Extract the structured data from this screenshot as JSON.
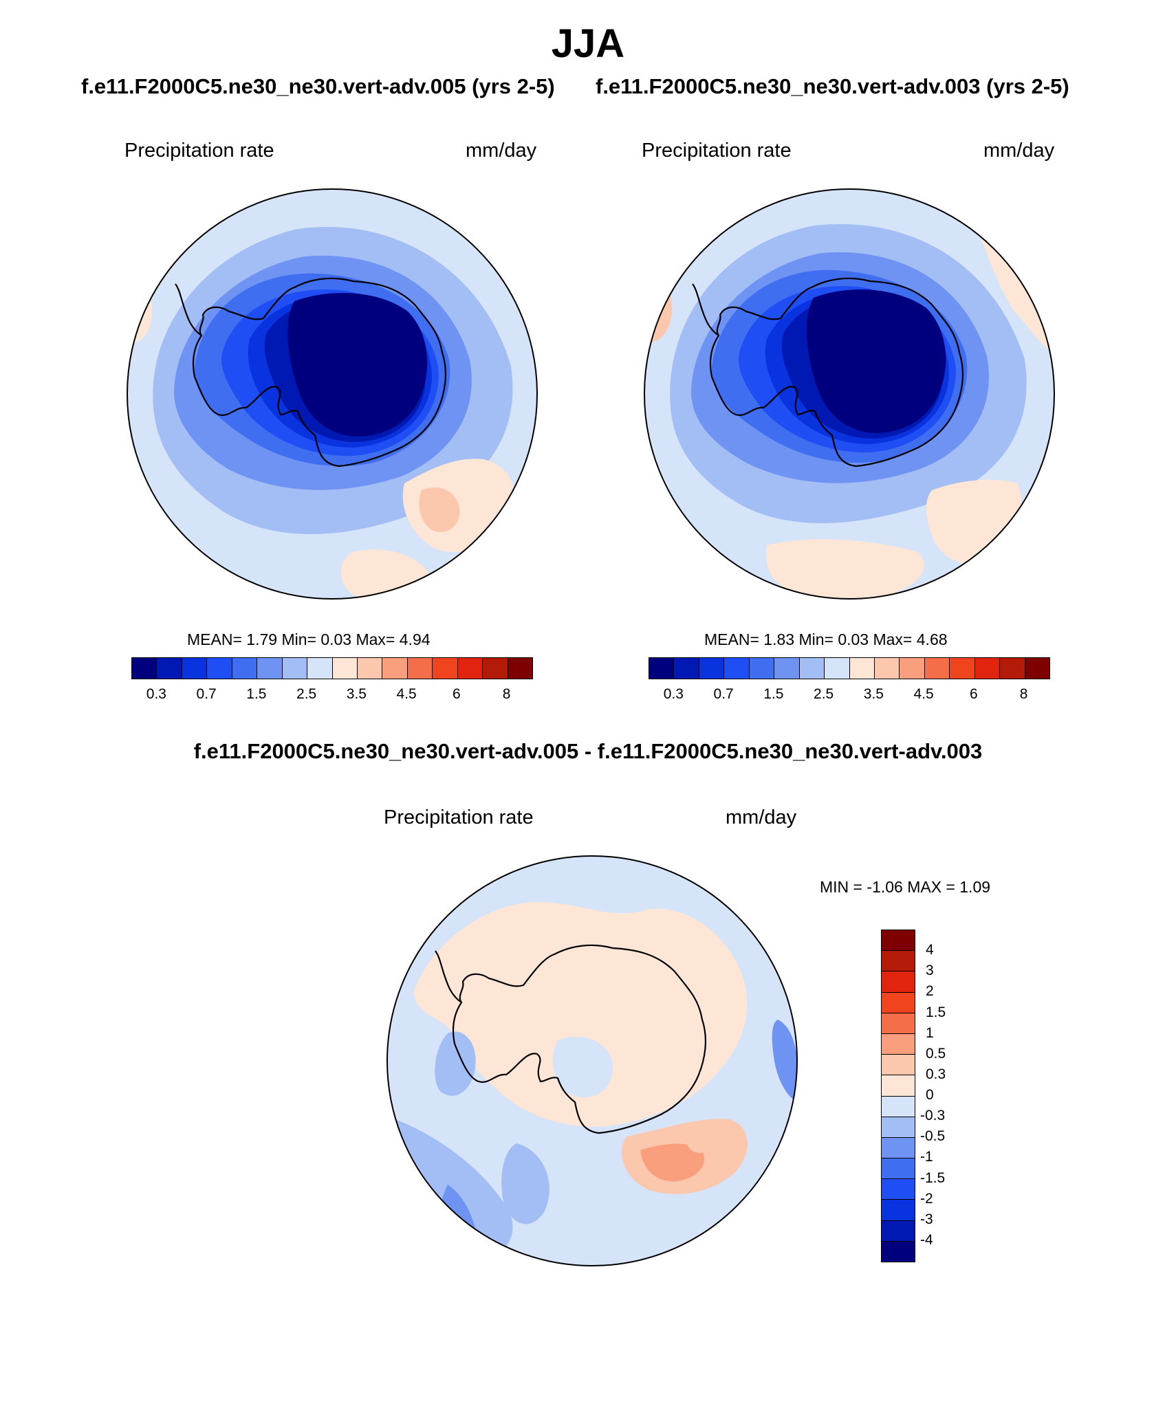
{
  "figure": {
    "season": "JJA",
    "case_left": "f.e11.F2000C5.ne30_ne30.vert-adv.005 (yrs 2-5)",
    "case_right": "f.e11.F2000C5.ne30_ne30.vert-adv.003 (yrs 2-5)",
    "diff_title": "f.e11.F2000C5.ne30_ne30.vert-adv.005 - f.e11.F2000C5.ne30_ne30.vert-adv.003"
  },
  "panels": [
    {
      "variable": "Precipitation rate",
      "units": "mm/day",
      "stats": {
        "mean_label": "MEAN=",
        "mean": "1.79",
        "min_label": "Min=",
        "min": "0.03",
        "max_label": "Max=",
        "max": "4.94"
      }
    },
    {
      "variable": "Precipitation rate",
      "units": "mm/day",
      "stats": {
        "mean_label": "MEAN=",
        "mean": "1.83",
        "min_label": "Min=",
        "min": "0.03",
        "max_label": "Max=",
        "max": "4.68"
      }
    }
  ],
  "diff_panel": {
    "variable": "Precipitation rate",
    "units": "mm/day",
    "stats": {
      "min_label": "MIN =",
      "min": "-1.06",
      "max_label": "MAX =",
      "max": "1.09"
    }
  },
  "colorbar_main": {
    "colors": [
      "#00007f",
      "#0019b3",
      "#0a33e0",
      "#1f4ef5",
      "#3f6ef0",
      "#6e93f2",
      "#a3bdf5",
      "#d6e4f9",
      "#fde6d6",
      "#fbc8ad",
      "#f99f7d",
      "#f56e4a",
      "#f0441f",
      "#e0240e",
      "#b31a07",
      "#7f0000"
    ],
    "tick_labels": [
      "0.3",
      "0.7",
      "1.5",
      "2.5",
      "3.5",
      "4.5",
      "6",
      "8"
    ]
  },
  "colorbar_diff": {
    "colors": [
      "#7f0000",
      "#b31a07",
      "#e0240e",
      "#f0441f",
      "#f56e4a",
      "#f99f7d",
      "#fbc8ad",
      "#fde6d6",
      "#d6e4f9",
      "#a3bdf5",
      "#6e93f2",
      "#3f6ef0",
      "#1f4ef5",
      "#0a33e0",
      "#0019b3",
      "#00007f"
    ],
    "tick_labels": [
      "4",
      "3",
      "2",
      "1.5",
      "1",
      "0.5",
      "0.3",
      "0",
      "-0.3",
      "-0.5",
      "-1",
      "-1.5",
      "-2",
      "-3",
      "-4"
    ]
  },
  "map_colors": {
    "deep": "#00007f",
    "dark": "#0019b3",
    "blue1": "#0a33e0",
    "blue2": "#1f4ef5",
    "blue3": "#3f6ef0",
    "blue4": "#6e93f2",
    "blue5": "#a3bdf5",
    "blue6": "#d6e4f9",
    "warm1": "#fde6d6",
    "warm2": "#fbc8ad",
    "warm3": "#f99f7d"
  }
}
